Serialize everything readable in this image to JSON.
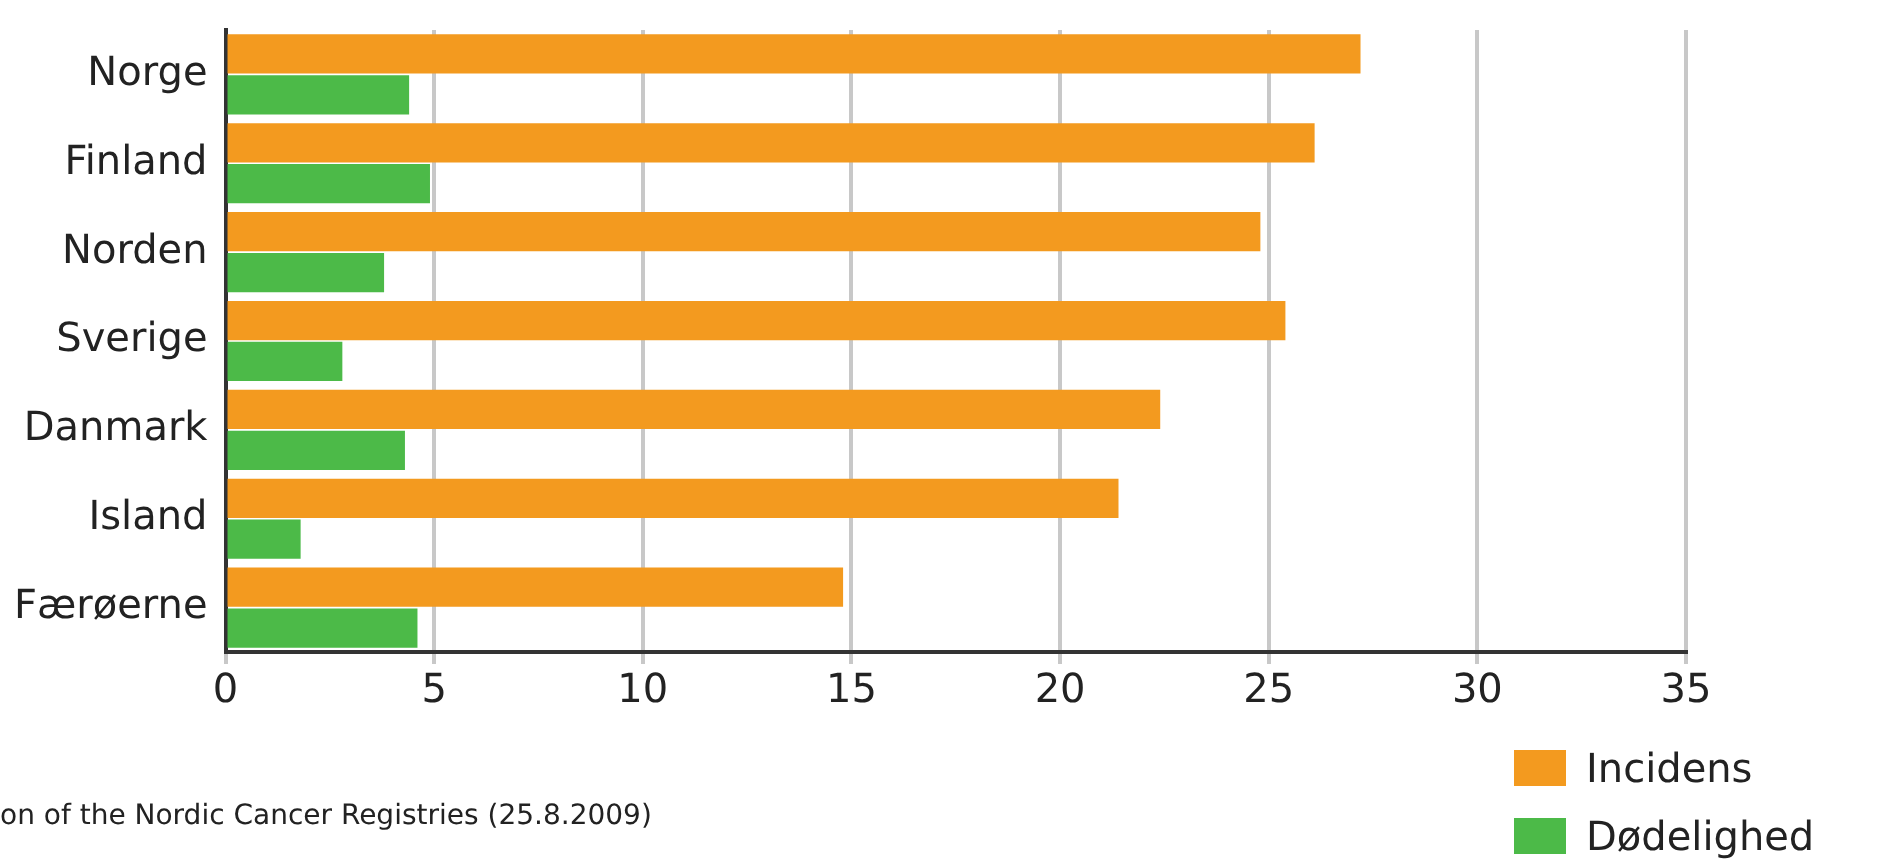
{
  "chart_data": {
    "type": "bar",
    "orientation": "horizontal",
    "categories": [
      "Norge",
      "Finland",
      "Norden",
      "Sverige",
      "Danmark",
      "Island",
      "Færøerne"
    ],
    "series": [
      {
        "name": "Incidens",
        "color": "#f39a1f",
        "values": [
          27.2,
          26.1,
          24.8,
          25.4,
          22.4,
          21.4,
          14.8
        ]
      },
      {
        "name": "Dødelighed",
        "color": "#4cba48",
        "values": [
          4.4,
          4.9,
          3.8,
          2.8,
          4.3,
          1.8,
          4.6
        ]
      }
    ],
    "xlim": [
      0,
      35
    ],
    "xticks": [
      0,
      5,
      10,
      15,
      20,
      25,
      30,
      35
    ],
    "grid": "x",
    "legend": "bottom right",
    "annotations": [
      "on of the Nordic Cancer Registries (25.8.2009)"
    ]
  }
}
